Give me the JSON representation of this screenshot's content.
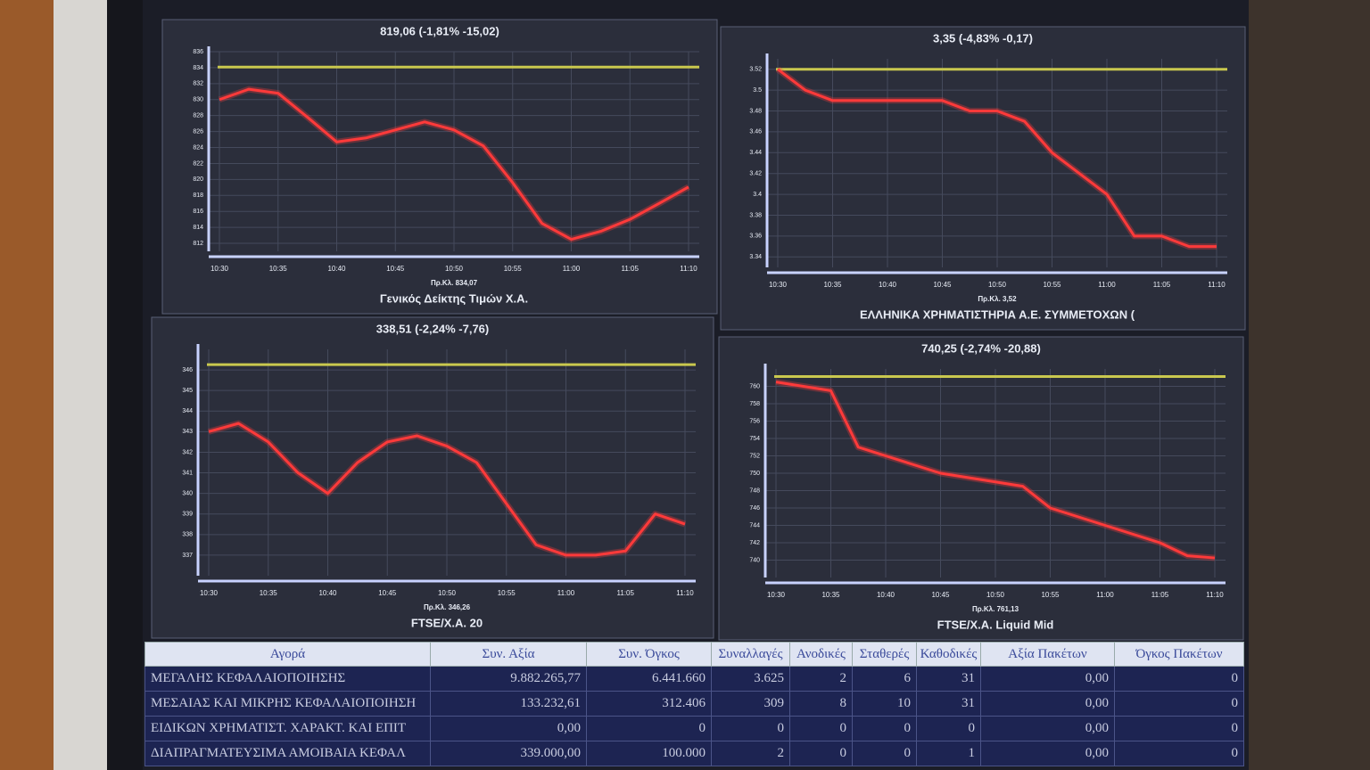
{
  "chart_data": [
    {
      "type": "line",
      "title": "819,06 (-1,81% -15,02)",
      "xlabel": "Γενικός Δείκτης Τιμών Χ.Α.",
      "reference": {
        "value": 834.07,
        "label": "Πρ.Κλ. 834,07",
        "color": "#c9c84e"
      },
      "categories": [
        "10:30",
        null,
        "10:35",
        null,
        "10:40",
        null,
        "10:45",
        null,
        "10:50",
        null,
        "10:55",
        null,
        "11:00",
        null,
        "11:05",
        null,
        "11:10"
      ],
      "series": [
        {
          "color": "#ff3a3a",
          "values": [
            830,
            831.3,
            830.8,
            827.8,
            824.7,
            825.2,
            826.2,
            827.2,
            826.2,
            824.2,
            819.6,
            814.5,
            812.5,
            813.5,
            815,
            817,
            819.06
          ]
        }
      ],
      "ylim": [
        811,
        836
      ],
      "yticks": [
        812,
        814,
        816,
        818,
        820,
        822,
        824,
        826,
        828,
        830,
        832,
        834,
        836
      ],
      "grid": true
    },
    {
      "type": "line",
      "title": "3,35 (-4,83% -0,17)",
      "xlabel": "ΕΛΛΗΝΙΚΑ ΧΡΗΜΑΤΙΣΤΗΡΙΑ Α.Ε. ΣΥΜΜΕΤΟΧΩΝ (",
      "reference": {
        "value": 3.52,
        "label": "Πρ.Κλ. 3,52",
        "color": "#c9c84e"
      },
      "categories": [
        "10:30",
        null,
        "10:35",
        null,
        "10:40",
        null,
        "10:45",
        null,
        "10:50",
        null,
        "10:55",
        null,
        "11:00",
        null,
        "11:05",
        null,
        "11:10"
      ],
      "series": [
        {
          "color": "#ff3a3a",
          "values": [
            3.52,
            3.5,
            3.49,
            3.49,
            3.49,
            3.49,
            3.49,
            3.48,
            3.48,
            3.47,
            3.44,
            3.42,
            3.4,
            3.36,
            3.36,
            3.35,
            3.35
          ]
        }
      ],
      "ylim": [
        3.33,
        3.53
      ],
      "yticks": [
        3.34,
        3.36,
        3.38,
        3.4,
        3.42,
        3.44,
        3.46,
        3.48,
        3.5,
        3.52
      ],
      "grid": true
    },
    {
      "type": "line",
      "title": "338,51 (-2,24% -7,76)",
      "xlabel": "FTSE/X.A. 20",
      "reference": {
        "value": 346.26,
        "label": "Πρ.Κλ. 346,26",
        "color": "#c9c84e"
      },
      "categories": [
        "10:30",
        null,
        "10:35",
        null,
        "10:40",
        null,
        "10:45",
        null,
        "10:50",
        null,
        "10:55",
        null,
        "11:00",
        null,
        "11:05",
        null,
        "11:10"
      ],
      "series": [
        {
          "color": "#ff3a3a",
          "values": [
            343,
            343.4,
            342.5,
            341,
            340,
            341.5,
            342.5,
            342.8,
            342.3,
            341.5,
            339.5,
            337.5,
            337,
            337,
            337.2,
            339,
            338.51
          ]
        }
      ],
      "ylim": [
        336,
        347
      ],
      "yticks": [
        337,
        338,
        339,
        340,
        341,
        342,
        343,
        344,
        345,
        346
      ],
      "grid": true
    },
    {
      "type": "line",
      "title": "740,25 (-2,74% -20,88)",
      "xlabel": "FTSE/X.A. Liquid Mid",
      "reference": {
        "value": 761.13,
        "label": "Πρ.Κλ. 761,13",
        "color": "#c9c84e"
      },
      "categories": [
        "10:30",
        null,
        "10:35",
        null,
        "10:40",
        null,
        "10:45",
        null,
        "10:50",
        null,
        "10:55",
        null,
        "11:00",
        null,
        "11:05",
        null,
        "11:10"
      ],
      "series": [
        {
          "color": "#ff3a3a",
          "values": [
            760.5,
            760,
            759.5,
            753,
            752,
            751,
            750,
            749.5,
            749,
            748.5,
            746,
            745,
            744,
            743,
            742,
            740.5,
            740.25
          ]
        }
      ],
      "ylim": [
        738,
        762
      ],
      "yticks": [
        740,
        742,
        744,
        746,
        748,
        750,
        752,
        754,
        756,
        758,
        760
      ],
      "grid": true
    }
  ],
  "table": {
    "header": [
      "Αγορά",
      "Συν. Αξία",
      "Συν. Όγκος",
      "Συναλλαγές",
      "Ανοδικές",
      "Σταθερές",
      "Καθοδικές",
      "Αξία Πακέτων",
      "Όγκος Πακέτων"
    ],
    "rows": [
      [
        "ΜΕΓΑΛΗΣ ΚΕΦΑΛΑΙΟΠΟΙΗΣΗΣ",
        "9.882.265,77",
        "6.441.660",
        "3.625",
        "2",
        "6",
        "31",
        "0,00",
        "0"
      ],
      [
        "ΜΕΣΑΙΑΣ ΚΑΙ ΜΙΚΡΗΣ ΚΕΦΑΛΑΙΟΠΟΙΗΣΗ",
        "133.232,61",
        "312.406",
        "309",
        "8",
        "10",
        "31",
        "0,00",
        "0"
      ],
      [
        "ΕΙΔΙΚΩΝ ΧΡΗΜΑΤΙΣΤ. ΧΑΡΑΚΤ. ΚΑΙ ΕΠΙΤ",
        "0,00",
        "0",
        "0",
        "0",
        "0",
        "0",
        "0,00",
        "0"
      ],
      [
        "ΔΙΑΠΡΑΓΜΑΤΕΥΣΙΜΑ ΑΜΟΙΒΑΙΑ ΚΕΦΑΛ",
        "339.000,00",
        "100.000",
        "2",
        "0",
        "0",
        "1",
        "0,00",
        "0"
      ]
    ]
  }
}
